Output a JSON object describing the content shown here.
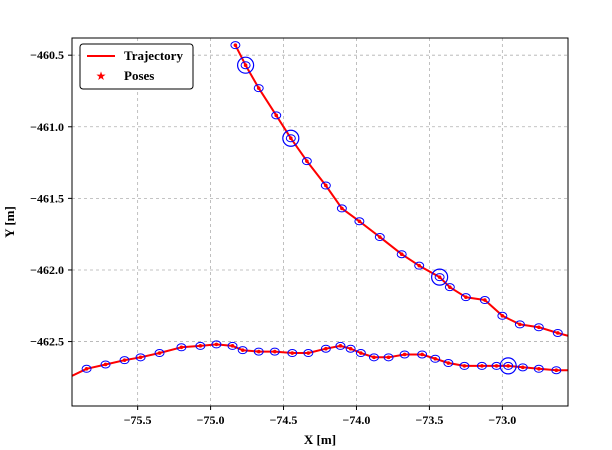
{
  "chart_data": {
    "type": "line",
    "xlabel": "X [m]",
    "ylabel": "Y [m]",
    "xlim": [
      -75.95,
      -72.55
    ],
    "ylim": [
      -462.95,
      -460.38
    ],
    "xticks": [
      -75.5,
      -75.0,
      -74.5,
      -74.0,
      -73.5,
      -73.0
    ],
    "xtick_labels": [
      "−75.5",
      "−75.0",
      "−74.5",
      "−74.0",
      "−73.5",
      "−73.0"
    ],
    "yticks": [
      -460.5,
      -461.0,
      -461.5,
      -462.0,
      -462.5
    ],
    "ytick_labels": [
      "−460.5",
      "−461.0",
      "−461.5",
      "−462.0",
      "−462.5"
    ],
    "grid": true,
    "legend_position": "top-left",
    "legend": [
      {
        "label": "Trajectory",
        "style": "line"
      },
      {
        "label": "Poses",
        "style": "star"
      }
    ],
    "colors": {
      "trajectory": "#ff0000",
      "poses": "#ff0000",
      "ellipses": "#0000ff"
    },
    "series": [
      {
        "name": "Trajectory",
        "segments": [
          {
            "x": [
              -74.83,
              -74.76,
              -74.67,
              -74.55,
              -74.45,
              -74.34,
              -74.21,
              -74.1,
              -73.98,
              -73.84,
              -73.69,
              -73.57,
              -73.43,
              -73.36,
              -73.25,
              -73.12,
              -73.0,
              -72.88,
              -72.75,
              -72.62,
              -72.55
            ],
            "y": [
              -460.43,
              -460.57,
              -460.73,
              -460.92,
              -461.08,
              -461.24,
              -461.41,
              -461.57,
              -461.66,
              -461.77,
              -461.89,
              -461.97,
              -462.05,
              -462.12,
              -462.19,
              -462.21,
              -462.32,
              -462.38,
              -462.4,
              -462.44,
              -462.46
            ]
          },
          {
            "x": [
              -75.95,
              -75.85,
              -75.72,
              -75.59,
              -75.48,
              -75.35,
              -75.2,
              -75.07,
              -74.96,
              -74.85,
              -74.78,
              -74.67,
              -74.56,
              -74.44,
              -74.33,
              -74.21,
              -74.11,
              -74.04,
              -73.97,
              -73.88,
              -73.78,
              -73.67,
              -73.55,
              -73.46,
              -73.37,
              -73.26,
              -73.14,
              -73.04,
              -72.96,
              -72.86,
              -72.75,
              -72.63,
              -72.55
            ],
            "y": [
              -462.74,
              -462.69,
              -462.66,
              -462.63,
              -462.61,
              -462.58,
              -462.54,
              -462.53,
              -462.52,
              -462.53,
              -462.56,
              -462.57,
              -462.57,
              -462.58,
              -462.58,
              -462.55,
              -462.53,
              -462.55,
              -462.58,
              -462.61,
              -462.61,
              -462.59,
              -462.59,
              -462.62,
              -462.65,
              -462.67,
              -462.67,
              -462.67,
              -462.67,
              -462.68,
              -462.69,
              -462.7,
              -462.7
            ]
          }
        ]
      },
      {
        "name": "Poses",
        "x": [
          -74.83,
          -74.76,
          -74.67,
          -74.55,
          -74.45,
          -74.34,
          -74.21,
          -74.1,
          -73.98,
          -73.84,
          -73.69,
          -73.57,
          -73.43,
          -73.36,
          -73.25,
          -73.12,
          -73.0,
          -72.88,
          -72.75,
          -72.62,
          -75.85,
          -75.72,
          -75.59,
          -75.48,
          -75.35,
          -75.2,
          -75.07,
          -74.96,
          -74.85,
          -74.78,
          -74.67,
          -74.56,
          -74.44,
          -74.33,
          -74.21,
          -74.11,
          -74.04,
          -73.97,
          -73.88,
          -73.78,
          -73.67,
          -73.55,
          -73.46,
          -73.37,
          -73.26,
          -73.14,
          -73.04,
          -72.96,
          -72.86,
          -72.75,
          -72.63
        ],
        "y": [
          -460.43,
          -460.57,
          -460.73,
          -460.92,
          -461.08,
          -461.24,
          -461.41,
          -461.57,
          -461.66,
          -461.77,
          -461.89,
          -461.97,
          -462.05,
          -462.12,
          -462.19,
          -462.21,
          -462.32,
          -462.38,
          -462.4,
          -462.44,
          -462.69,
          -462.66,
          -462.63,
          -462.61,
          -462.58,
          -462.54,
          -462.53,
          -462.52,
          -462.53,
          -462.56,
          -462.57,
          -462.57,
          -462.58,
          -462.58,
          -462.55,
          -462.53,
          -462.55,
          -462.58,
          -462.61,
          -462.61,
          -462.59,
          -462.59,
          -462.62,
          -462.65,
          -462.67,
          -462.67,
          -462.67,
          -462.67,
          -462.68,
          -462.69,
          -462.7
        ]
      }
    ],
    "large_ellipses": [
      {
        "x": -74.76,
        "y": -460.57
      },
      {
        "x": -74.45,
        "y": -461.08
      },
      {
        "x": -73.43,
        "y": -462.05
      },
      {
        "x": -72.96,
        "y": -462.67
      }
    ]
  }
}
